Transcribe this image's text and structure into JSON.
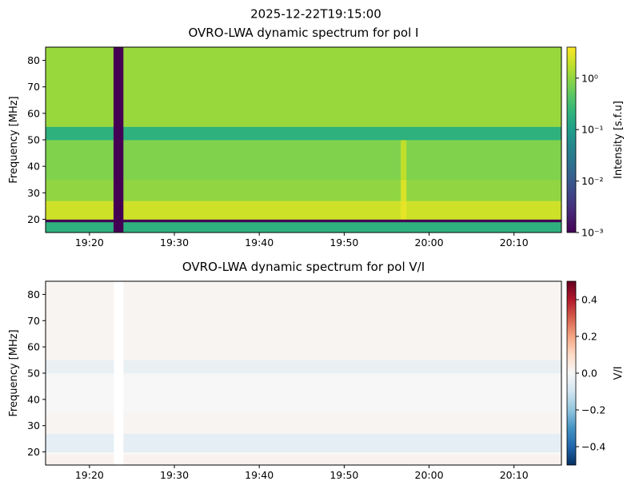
{
  "suptitle": "2025-12-22T19:15:00",
  "chart_data": [
    {
      "type": "heatmap",
      "title": "OVRO-LWA dynamic spectrum for pol I",
      "ylabel": "Frequency [MHz]",
      "colorbar_label": "Intensity [s.f.u]",
      "colormap": "viridis",
      "log_color": true,
      "x": [
        "19:14:50",
        "19:22:50",
        "19:24:00",
        "19:56:40",
        "19:57:20",
        "20:15:35"
      ],
      "y": [
        15,
        19,
        20,
        27,
        35,
        50,
        55,
        85
      ],
      "values": [
        [
          0.2,
          0.001,
          2.2,
          1.0,
          0.8,
          0.2,
          1.1
        ],
        [
          0.001,
          0.001,
          0.001,
          0.001,
          0.001,
          0.001,
          0.001
        ],
        [
          0.2,
          0.001,
          2.2,
          1.0,
          0.8,
          0.2,
          1.1
        ],
        [
          0.2,
          0.001,
          3,
          2.5,
          1.8,
          0.2,
          1.1
        ],
        [
          0.2,
          0.001,
          2.2,
          1.0,
          0.8,
          0.2,
          1.1
        ]
      ],
      "xlim": [
        "19:14:50",
        "20:15:35"
      ],
      "xticks": [
        "19:20",
        "19:30",
        "19:40",
        "19:50",
        "20:00",
        "20:10"
      ],
      "ylim": [
        15,
        85
      ],
      "yticks": [
        20,
        30,
        40,
        50,
        60,
        70,
        80
      ],
      "clim": [
        0.001,
        4
      ],
      "cticks": [
        {
          "value": 0.001,
          "label": "10⁻³"
        },
        {
          "value": 0.01,
          "label": "10⁻²"
        },
        {
          "value": 0.1,
          "label": "10⁻¹"
        },
        {
          "value": 1,
          "label": "10⁰"
        }
      ]
    },
    {
      "type": "heatmap",
      "title": "OVRO-LWA dynamic spectrum for pol V/I",
      "ylabel": "Frequency [MHz]",
      "colorbar_label": "V/I",
      "colormap": "RdBu_r",
      "log_color": false,
      "x": [
        "19:14:50",
        "19:22:50",
        "19:24:00",
        "20:15:35"
      ],
      "y": [
        15,
        19,
        20,
        27,
        35,
        50,
        55,
        85
      ],
      "values": [
        [
          0.02,
          0,
          -0.05,
          0.01,
          0,
          -0.04,
          0.01
        ],
        [
          null,
          null,
          null,
          null,
          null,
          null,
          null
        ],
        [
          0.02,
          0,
          -0.05,
          0.01,
          0,
          -0.04,
          0.01
        ]
      ],
      "xlim": [
        "19:14:50",
        "20:15:35"
      ],
      "xticks": [
        "19:20",
        "19:30",
        "19:40",
        "19:50",
        "20:00",
        "20:10"
      ],
      "ylim": [
        15,
        85
      ],
      "yticks": [
        20,
        30,
        40,
        50,
        60,
        70,
        80
      ],
      "clim": [
        -0.5,
        0.5
      ],
      "cticks": [
        {
          "value": -0.4,
          "label": "−0.4"
        },
        {
          "value": -0.2,
          "label": "−0.2"
        },
        {
          "value": 0,
          "label": "0.0"
        },
        0.2,
        0.4
      ]
    }
  ]
}
